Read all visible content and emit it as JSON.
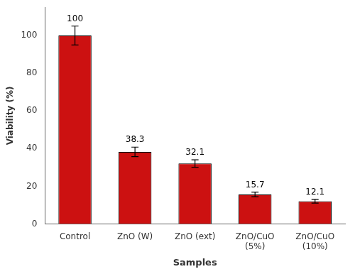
{
  "chart_data": {
    "type": "bar",
    "categories": [
      "Control",
      "ZnO (W)",
      "ZnO (ext)",
      "ZnO/CuO\n(5%)",
      "ZnO/CuO\n(10%)"
    ],
    "values": [
      100,
      38.3,
      32.1,
      15.7,
      12.1
    ],
    "errors": [
      5.0,
      2.5,
      2.0,
      1.2,
      1.0
    ],
    "color": "#cc1111",
    "xlabel": "Samples",
    "ylabel": "Viability (%)",
    "ylim": [
      0,
      115
    ],
    "yticks": [
      0,
      20,
      40,
      60,
      80,
      100
    ],
    "grid": false,
    "data_labels": true
  }
}
